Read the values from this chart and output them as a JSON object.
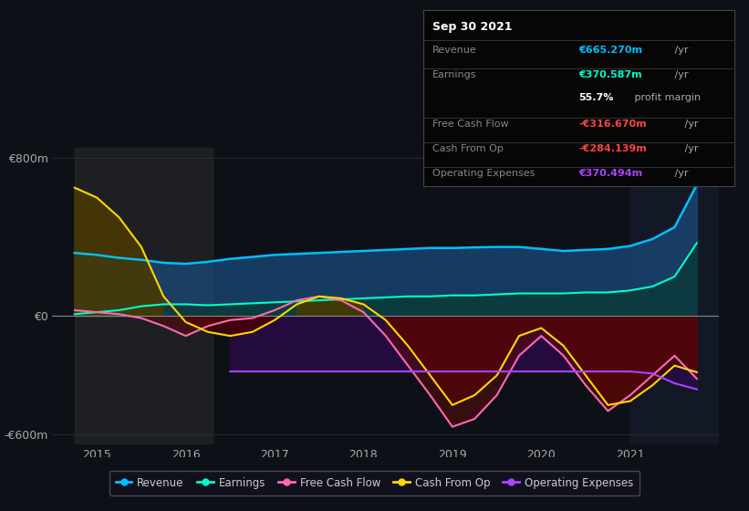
{
  "bg_color": "#0d1117",
  "ylim": [
    -650,
    850
  ],
  "xlim": [
    2014.5,
    2022.0
  ],
  "yticks": [
    -600,
    0,
    800
  ],
  "ytick_labels": [
    "-€600m",
    "€0",
    "€800m"
  ],
  "xticks": [
    2015.0,
    2016.0,
    2017.0,
    2018.0,
    2019.0,
    2020.0,
    2021.0
  ],
  "xtick_labels": [
    "2015",
    "2016",
    "2017",
    "2018",
    "2019",
    "2020",
    "2021"
  ],
  "legend_items": [
    {
      "label": "Revenue",
      "color": "#00bfff"
    },
    {
      "label": "Earnings",
      "color": "#00ffcc"
    },
    {
      "label": "Free Cash Flow",
      "color": "#ff69b4"
    },
    {
      "label": "Cash From Op",
      "color": "#ffd700"
    },
    {
      "label": "Operating Expenses",
      "color": "#aa44ff"
    }
  ],
  "info_box": {
    "title": "Sep 30 2021",
    "rows": [
      {
        "label": "Revenue",
        "value": "€665.270m",
        "suffix": " /yr",
        "value_color": "#00bfff",
        "has_divider_above": true
      },
      {
        "label": "Earnings",
        "value": "€370.587m",
        "suffix": " /yr",
        "value_color": "#00ffcc",
        "has_divider_above": true
      },
      {
        "label": "",
        "value": "55.7%",
        "suffix": " profit margin",
        "value_color": "#ffffff",
        "has_divider_above": false
      },
      {
        "label": "Free Cash Flow",
        "value": "-€316.670m",
        "suffix": " /yr",
        "value_color": "#ff4444",
        "has_divider_above": true
      },
      {
        "label": "Cash From Op",
        "value": "-€284.139m",
        "suffix": " /yr",
        "value_color": "#ff4444",
        "has_divider_above": true
      },
      {
        "label": "Operating Expenses",
        "value": "€370.494m",
        "suffix": " /yr",
        "value_color": "#aa44ff",
        "has_divider_above": true
      }
    ]
  },
  "series": {
    "x": [
      2014.75,
      2015.0,
      2015.25,
      2015.5,
      2015.75,
      2016.0,
      2016.25,
      2016.5,
      2016.75,
      2017.0,
      2017.25,
      2017.5,
      2017.75,
      2018.0,
      2018.25,
      2018.5,
      2018.75,
      2019.0,
      2019.25,
      2019.5,
      2019.75,
      2020.0,
      2020.25,
      2020.5,
      2020.75,
      2021.0,
      2021.25,
      2021.5,
      2021.75
    ],
    "revenue": [
      320,
      310,
      295,
      285,
      270,
      265,
      275,
      290,
      300,
      310,
      315,
      320,
      325,
      330,
      335,
      340,
      345,
      345,
      348,
      350,
      350,
      340,
      330,
      335,
      340,
      355,
      390,
      450,
      665
    ],
    "earnings": [
      10,
      20,
      30,
      50,
      60,
      60,
      55,
      60,
      65,
      70,
      75,
      80,
      85,
      90,
      95,
      100,
      100,
      105,
      105,
      110,
      115,
      115,
      115,
      120,
      120,
      130,
      150,
      200,
      370
    ],
    "free_cash_flow": [
      30,
      20,
      10,
      -10,
      -50,
      -100,
      -50,
      -20,
      -10,
      30,
      80,
      100,
      80,
      20,
      -100,
      -250,
      -400,
      -560,
      -520,
      -400,
      -200,
      -100,
      -200,
      -350,
      -480,
      -400,
      -300,
      -200,
      -317
    ],
    "cash_from_op": [
      650,
      600,
      500,
      350,
      100,
      -30,
      -80,
      -100,
      -80,
      -20,
      60,
      100,
      90,
      60,
      -20,
      -150,
      -300,
      -450,
      -400,
      -300,
      -100,
      -60,
      -150,
      -300,
      -450,
      -430,
      -350,
      -250,
      -284
    ],
    "op_exp_x": [
      2016.5,
      2016.75,
      2017.0,
      2017.25,
      2017.5,
      2017.75,
      2018.0,
      2018.25,
      2018.5,
      2018.75,
      2019.0,
      2019.25,
      2019.5,
      2019.75,
      2020.0,
      2020.25,
      2020.5,
      2020.75,
      2021.0,
      2021.25,
      2021.5,
      2021.75
    ],
    "op_exp_y": [
      -280,
      -280,
      -280,
      -280,
      -280,
      -280,
      -280,
      -280,
      -280,
      -280,
      -280,
      -280,
      -280,
      -280,
      -280,
      -280,
      -280,
      -280,
      -280,
      -290,
      -340,
      -370
    ]
  },
  "highlight_regions": [
    {
      "x_start": 2014.75,
      "x_end": 2016.3,
      "color": "#2a2a2a",
      "alpha": 0.6
    },
    {
      "x_start": 2021.0,
      "x_end": 2022.0,
      "color": "#1a2035",
      "alpha": 0.5
    }
  ],
  "fill_colors": {
    "revenue": "#1a4a7a",
    "earnings": "#0a3a3a",
    "cash_pos": "#4a3a00",
    "cash_neg": "#4a0000",
    "fcf_neg": "#5a0a0a",
    "op_exp": "#2a0a4a"
  },
  "line_colors": {
    "revenue": "#00bfff",
    "earnings": "#00ffcc",
    "free_cash_flow": "#ff69b4",
    "cash_from_op": "#ffd700",
    "op_exp": "#aa44ff"
  },
  "zero_line_color": "#888888",
  "grid_color": "#333333",
  "divider_color": "#333333"
}
